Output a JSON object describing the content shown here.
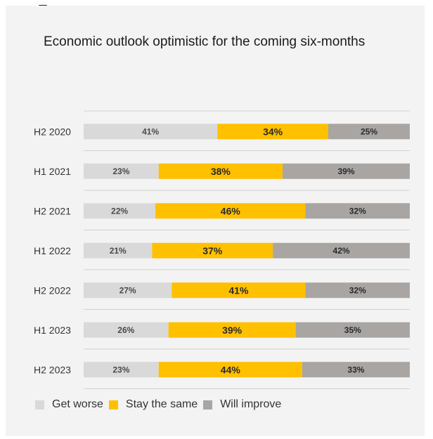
{
  "chart_data": {
    "type": "bar",
    "orientation": "horizontal",
    "stacked": true,
    "title": "Economic outlook optimistic for the coming six-months",
    "categories": [
      "H2 2020",
      "H1 2021",
      "H2 2021",
      "H1 2022",
      "H2 2022",
      "H1 2023",
      "H2 2023"
    ],
    "series": [
      {
        "name": "Get worse",
        "color": "#d9d9d9",
        "values": [
          41,
          23,
          22,
          21,
          27,
          26,
          23
        ]
      },
      {
        "name": "Stay the same",
        "color": "#ffc000",
        "values": [
          34,
          38,
          46,
          37,
          41,
          39,
          44
        ]
      },
      {
        "name": "Will improve",
        "color": "#a9a5a3",
        "values": [
          25,
          39,
          32,
          42,
          32,
          35,
          33
        ]
      }
    ],
    "xlim": [
      0,
      100
    ],
    "value_suffix": "%",
    "grid": true,
    "legend_position": "bottom-left"
  }
}
